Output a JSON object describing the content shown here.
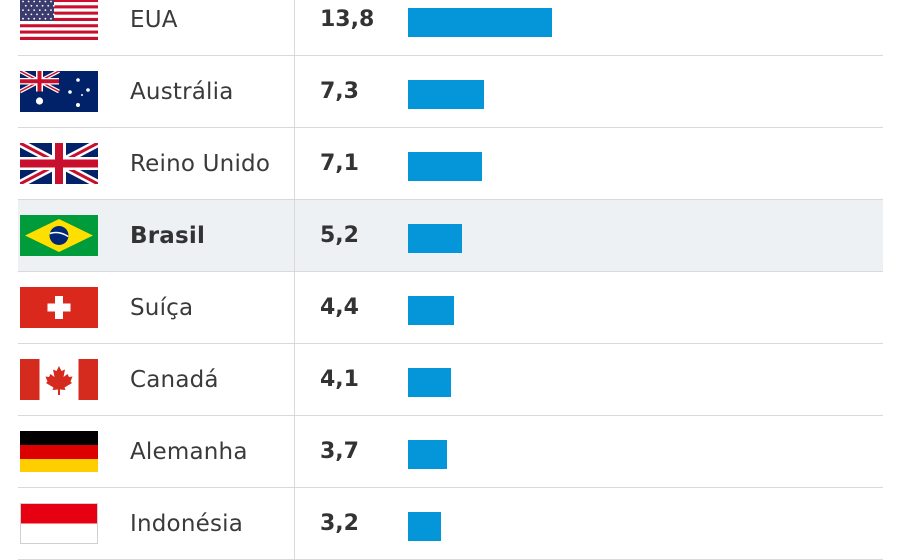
{
  "chart_data": {
    "type": "bar",
    "orientation": "horizontal",
    "categories": [
      "EUA",
      "Austrália",
      "Reino Unido",
      "Brasil",
      "Suíça",
      "Canadá",
      "Alemanha",
      "Indonésia"
    ],
    "value_labels": [
      "13,8",
      "7,3",
      "7,1",
      "5,2",
      "4,4",
      "4,1",
      "3,7",
      "3,2"
    ],
    "values": [
      13.8,
      7.3,
      7.1,
      5.2,
      4.4,
      4.1,
      3.7,
      3.2
    ],
    "highlighted_category": "Brasil",
    "flag_icons": [
      "usa-flag-icon",
      "australia-flag-icon",
      "uk-flag-icon",
      "brazil-flag-icon",
      "switzerland-flag-icon",
      "canada-flag-icon",
      "germany-flag-icon",
      "indonesia-flag-icon"
    ],
    "bar_color": "#0596d9",
    "highlight_row_color": "#eef1f4"
  }
}
